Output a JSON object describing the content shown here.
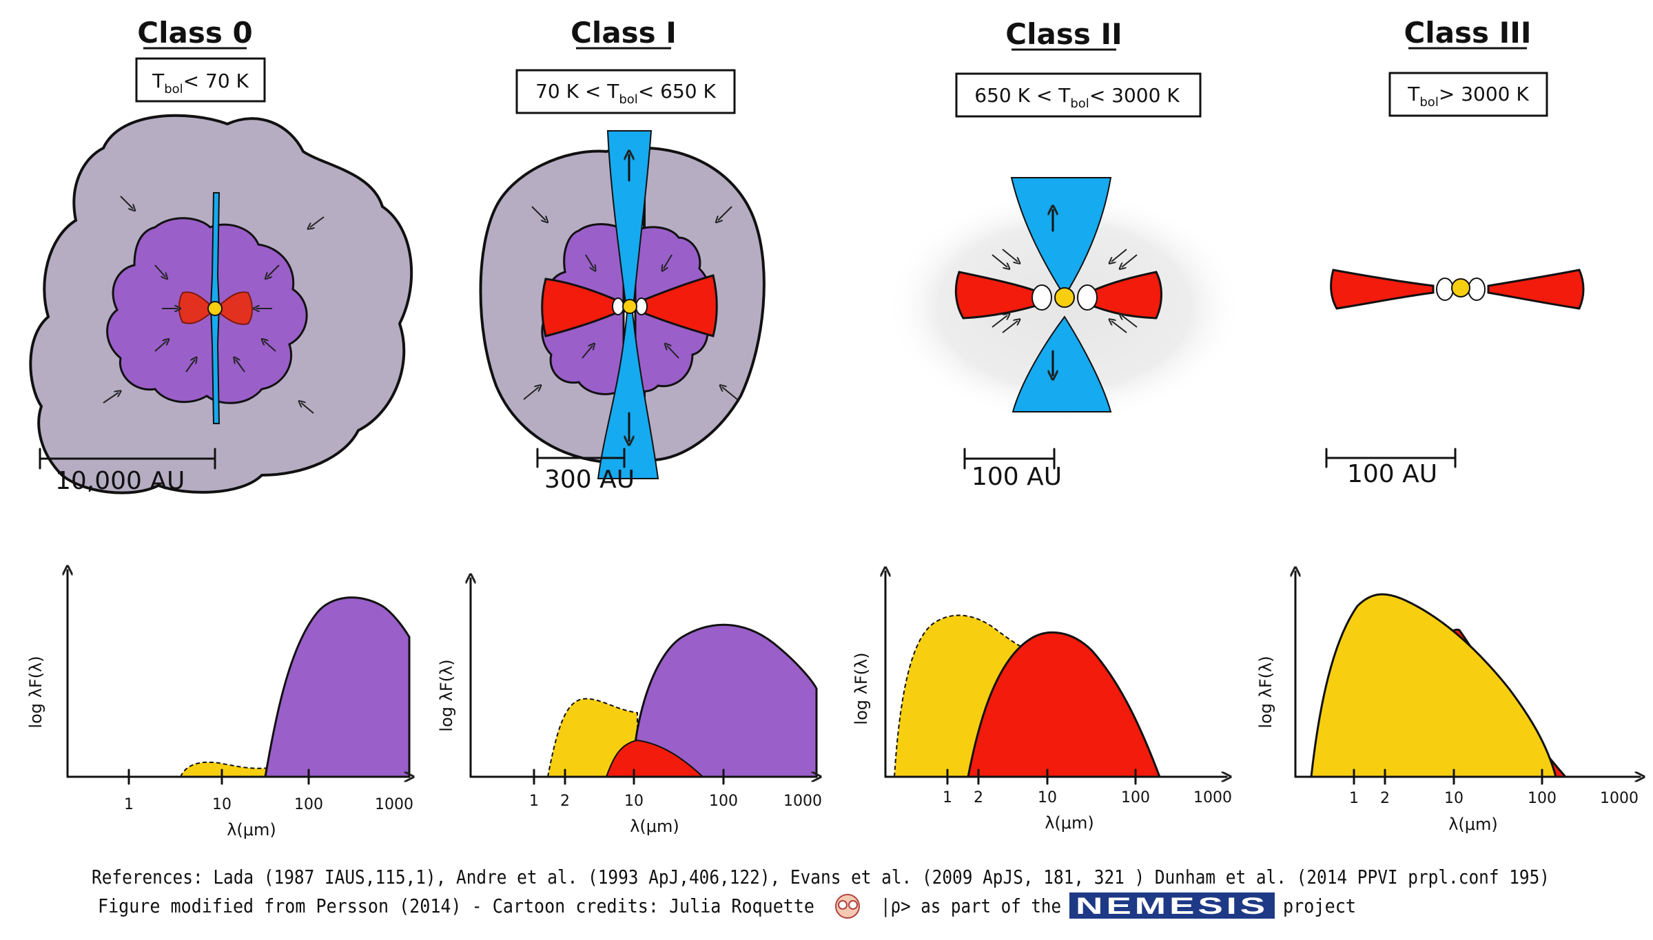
{
  "classes": [
    {
      "title": "Class 0",
      "tbol_pre": "T",
      "tbol_sub": "bol",
      "tbol_post": "< 70 K",
      "tbol_lead": "",
      "scale": "10,000 AU"
    },
    {
      "title": "Class I",
      "tbol_lead": "70 K < T",
      "tbol_sub": "bol",
      "tbol_post": "< 650 K",
      "scale": "300 AU"
    },
    {
      "title": "Class II",
      "tbol_lead": "650 K < T",
      "tbol_sub": "bol",
      "tbol_post": "< 3000 K",
      "scale": "100 AU"
    },
    {
      "title": "Class III",
      "tbol_pre": "T",
      "tbol_sub": "bol",
      "tbol_post": "> 3000 K",
      "tbol_lead": "",
      "scale": "100 AU"
    }
  ],
  "sed": {
    "ylabel": "log λF(λ)",
    "xlabel": "λ(μm)",
    "ticks": [
      "1",
      "2",
      "10",
      "100",
      "1000"
    ]
  },
  "colors": {
    "envelope": "#b6adc3",
    "inner_envelope": "#9a5fc9",
    "outflow": "#16aaf0",
    "disk": "#f21b0c",
    "star": "#f8cf10",
    "haze": "#d8d8d8"
  },
  "references": {
    "line1": "References: Lada (1987 IAUS,115,1),  Andre et al. (1993 ApJ,406,122), Evans et al. (2009  ApJS, 181, 321 ) Dunham et al. (2014 PPVI prpl.conf 195)",
    "line2_a": "Figure modified from Persson (2014) - Cartoon credits: Julia Roquette",
    "line2_b": "|ρ> as part of the",
    "nemesis_logo": "NEMESIS",
    "line2_c": "project"
  }
}
